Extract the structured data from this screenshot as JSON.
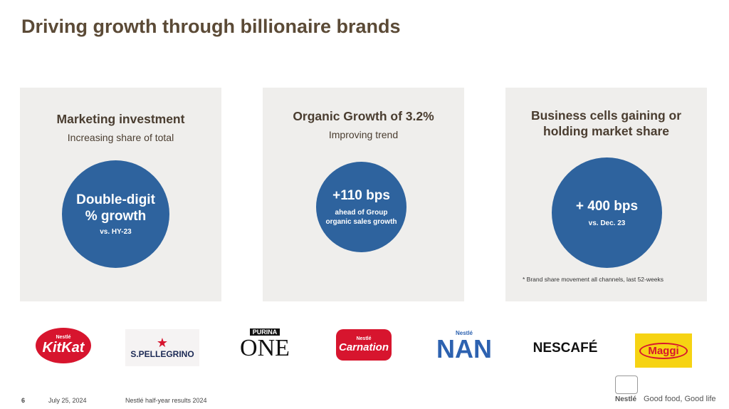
{
  "header": {
    "title": "Driving growth through billionaire brands"
  },
  "panels": [
    {
      "heading": "Marketing investment",
      "subheading": "Increasing share of total",
      "circle_main": "Double-digit % growth",
      "circle_sub": "vs. HY-23"
    },
    {
      "heading": "Organic Growth of 3.2%",
      "subheading": "Improving trend",
      "circle_main": "+110 bps",
      "circle_sub": "ahead of Group organic sales growth"
    },
    {
      "heading": "Business cells gaining or holding market share",
      "circle_main": "+ 400 bps",
      "circle_sub": "vs. Dec. 23",
      "footnote": "* Brand share movement all channels, last 52-weeks"
    }
  ],
  "brands": {
    "kitkat": {
      "small": "Nestlé",
      "name": "KitKat"
    },
    "pellegrino": {
      "name": "S.PELLEGRINO"
    },
    "purina": {
      "small": "PURINA",
      "name": "ONE"
    },
    "carnation": {
      "small": "Nestlé",
      "name": "Carnation"
    },
    "nan": {
      "small": "Nestlé",
      "name": "NAN"
    },
    "nescafe": {
      "name": "NESCAFÉ"
    },
    "maggi": {
      "name": "Maggi"
    }
  },
  "footer": {
    "page": "6",
    "date": "July 25, 2024",
    "doc": "Nestlé half-year results 2024",
    "brand": "Nestlé",
    "tagline": "Good food, Good life"
  }
}
